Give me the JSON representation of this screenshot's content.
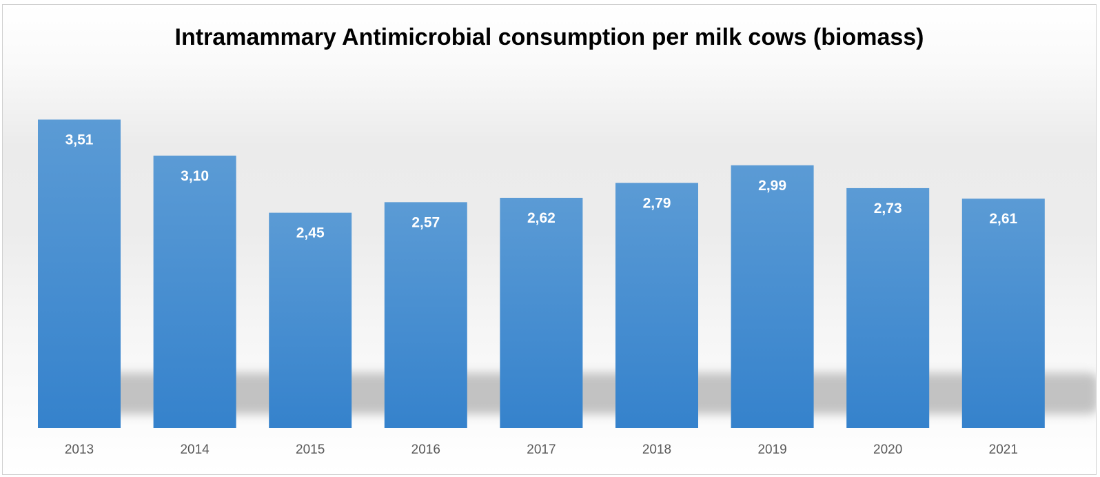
{
  "chart_data": {
    "type": "bar",
    "title": "Intramammary Antimicrobial consumption per milk cows (biomass)",
    "categories": [
      "2013",
      "2014",
      "2015",
      "2016",
      "2017",
      "2018",
      "2019",
      "2020",
      "2021"
    ],
    "values": [
      3.51,
      3.1,
      2.45,
      2.57,
      2.62,
      2.79,
      2.99,
      2.73,
      2.61
    ],
    "data_labels": [
      "3,51",
      "3,10",
      "2,45",
      "2,57",
      "2,62",
      "2,79",
      "2,99",
      "2,73",
      "2,61"
    ],
    "xlabel": "",
    "ylabel": "",
    "ylim": [
      0,
      4
    ],
    "grid": false,
    "legend": "none",
    "bar_color_top": "#5b9bd5",
    "bar_color_bottom": "#3582cc",
    "shadow_color": "#b9b9b9"
  }
}
